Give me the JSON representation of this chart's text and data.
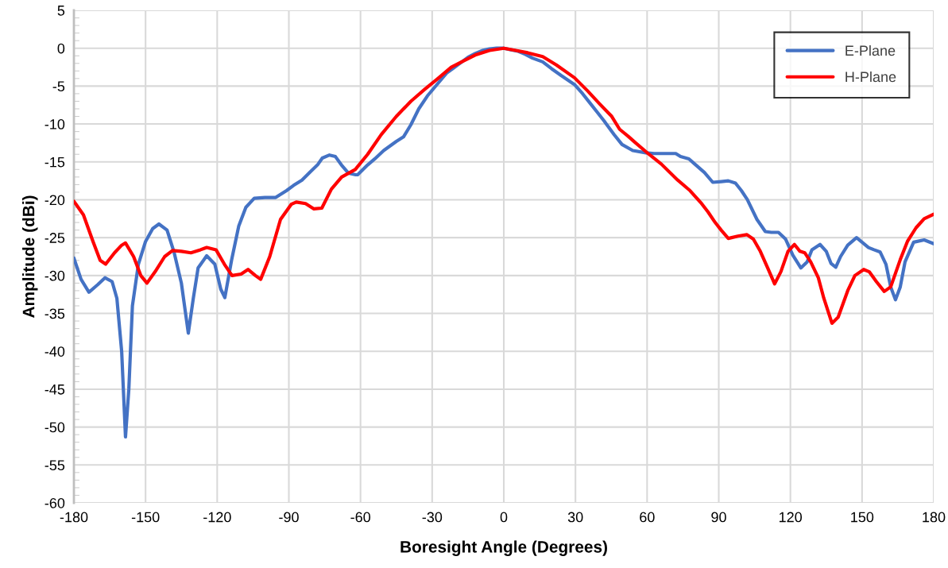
{
  "chart_data": {
    "type": "line",
    "xlabel": "Boresight Angle (Degrees)",
    "ylabel": "Amplitude (dBi)",
    "xlim": [
      -180,
      180
    ],
    "xticks": [
      -180,
      -150,
      -120,
      -90,
      -60,
      -30,
      0,
      30,
      60,
      90,
      120,
      150,
      180
    ],
    "ylim": [
      -60,
      5
    ],
    "yticks": [
      -60,
      -55,
      -50,
      -45,
      -40,
      -35,
      -30,
      -25,
      -20,
      -15,
      -10,
      -5,
      0,
      5
    ],
    "grid": true,
    "legend": "top right",
    "marker": "none",
    "line_style": "solid",
    "series": [
      {
        "name": "E-Plane",
        "color": "#4472c4",
        "x": [
          -180,
          -177,
          -173.7,
          -170,
          -167,
          -164,
          -162,
          -160,
          -158.4,
          -157,
          -155.5,
          -153,
          -150,
          -147,
          -144.4,
          -141,
          -138,
          -135,
          -132.1,
          -130,
          -128,
          -124.4,
          -121,
          -118.5,
          -116.8,
          -114,
          -111,
          -108,
          -104.5,
          -100,
          -95.5,
          -91,
          -88,
          -84.5,
          -81,
          -78,
          -76,
          -73,
          -70.5,
          -68,
          -65,
          -62,
          -61.2,
          -57,
          -54,
          -50.3,
          -45,
          -42,
          -38.9,
          -35.6,
          -32,
          -28,
          -24,
          -21,
          -18,
          -15,
          -12,
          -9,
          -6,
          -3,
          0,
          3,
          6,
          9,
          12,
          16.3,
          20,
          24,
          29.6,
          33,
          36,
          39,
          42,
          46.2,
          49.5,
          54,
          59.5,
          63,
          66.2,
          69,
          72,
          74,
          77.5,
          80,
          84,
          87.5,
          91,
          94,
          97,
          99.5,
          102,
          106,
          109.5,
          112,
          115,
          118,
          121,
          124.4,
          127,
          129,
          132.4,
          135,
          137,
          139,
          141,
          144,
          147.7,
          150,
          152.7,
          155,
          157.6,
          160,
          162,
          164,
          166,
          168,
          171.6,
          176,
          180
        ],
        "values": [
          -27.7,
          -30.5,
          -32.2,
          -31.2,
          -30.3,
          -30.8,
          -33,
          -40,
          -51.3,
          -45,
          -34,
          -28.5,
          -25.5,
          -23.8,
          -23.2,
          -24,
          -27,
          -31,
          -37.6,
          -33,
          -29,
          -27.4,
          -28.5,
          -31.8,
          -32.9,
          -28,
          -23.5,
          -21,
          -19.8,
          -19.7,
          -19.7,
          -18.8,
          -18.1,
          -17.4,
          -16.3,
          -15.4,
          -14.5,
          -14.1,
          -14.3,
          -15.4,
          -16.5,
          -16.7,
          -16.7,
          -15.4,
          -14.6,
          -13.5,
          -12.3,
          -11.7,
          -10.1,
          -8.0,
          -6.3,
          -4.8,
          -3.3,
          -2.6,
          -1.9,
          -1.2,
          -0.7,
          -0.3,
          -0.1,
          0,
          0,
          -0.2,
          -0.4,
          -0.8,
          -1.3,
          -1.8,
          -2.7,
          -3.6,
          -4.8,
          -6.0,
          -7.2,
          -8.4,
          -9.6,
          -11.4,
          -12.7,
          -13.5,
          -13.8,
          -13.9,
          -13.9,
          -13.9,
          -13.9,
          -14.3,
          -14.6,
          -15.3,
          -16.4,
          -17.7,
          -17.6,
          -17.5,
          -17.8,
          -18.8,
          -20.0,
          -22.6,
          -24.2,
          -24.3,
          -24.3,
          -25.2,
          -27.3,
          -29.0,
          -28.2,
          -26.6,
          -25.9,
          -26.8,
          -28.4,
          -28.9,
          -27.5,
          -26.0,
          -25.0,
          -25.6,
          -26.3,
          -26.6,
          -26.9,
          -28.5,
          -31.5,
          -33.2,
          -31.5,
          -28.2,
          -25.6,
          -25.3,
          -25.8
        ]
      },
      {
        "name": "H-Plane",
        "color": "#ff0000",
        "x": [
          -180,
          -176,
          -172,
          -169,
          -166.7,
          -163,
          -160,
          -158.4,
          -155,
          -152,
          -149.4,
          -146,
          -142,
          -138.7,
          -135,
          -131,
          -127,
          -124.4,
          -120.5,
          -117,
          -113.8,
          -110,
          -107.1,
          -104,
          -101.8,
          -98,
          -93.5,
          -89,
          -86.9,
          -83,
          -79.5,
          -76.2,
          -72.2,
          -67.9,
          -62.2,
          -57,
          -51.3,
          -45,
          -38.9,
          -33,
          -28,
          -22,
          -17,
          -12,
          -6,
          0,
          5,
          10,
          16.3,
          22,
          29.6,
          35,
          40,
          45.2,
          48.5,
          52,
          55.2,
          60.8,
          66,
          72.8,
          78,
          82.8,
          85.5,
          88.5,
          91,
          94,
          98,
          101.8,
          104.5,
          107.4,
          110.5,
          113.4,
          116,
          119,
          121.7,
          124,
          126,
          128.5,
          131.7,
          134,
          137.4,
          140,
          144,
          147,
          150.7,
          153,
          156,
          159.3,
          162,
          166,
          169,
          172.6,
          176,
          180
        ],
        "values": [
          -20.2,
          -22,
          -25.5,
          -28,
          -28.5,
          -27,
          -26,
          -25.7,
          -27.5,
          -30,
          -31.0,
          -29.5,
          -27.5,
          -26.7,
          -26.8,
          -27.0,
          -26.6,
          -26.3,
          -26.6,
          -28.5,
          -30.0,
          -29.8,
          -29.2,
          -30,
          -30.5,
          -27.5,
          -22.6,
          -20.6,
          -20.3,
          -20.5,
          -21.2,
          -21.1,
          -18.6,
          -17.0,
          -16.0,
          -14.0,
          -11.4,
          -9.0,
          -7.0,
          -5.4,
          -4.1,
          -2.5,
          -1.7,
          -0.9,
          -0.3,
          0,
          -0.3,
          -0.6,
          -1.1,
          -2.2,
          -3.9,
          -5.6,
          -7.3,
          -9.0,
          -10.7,
          -11.6,
          -12.5,
          -14.0,
          -15.3,
          -17.4,
          -18.8,
          -20.5,
          -21.6,
          -23,
          -24.0,
          -25.1,
          -24.8,
          -24.6,
          -25.2,
          -26.8,
          -29.0,
          -31.1,
          -29.5,
          -26.8,
          -25.9,
          -26.8,
          -27.0,
          -28.2,
          -30.3,
          -33,
          -36.3,
          -35.5,
          -32,
          -30,
          -29.2,
          -29.5,
          -30.8,
          -32.1,
          -31.5,
          -27.9,
          -25.5,
          -23.7,
          -22.5,
          -21.9
        ]
      }
    ]
  }
}
